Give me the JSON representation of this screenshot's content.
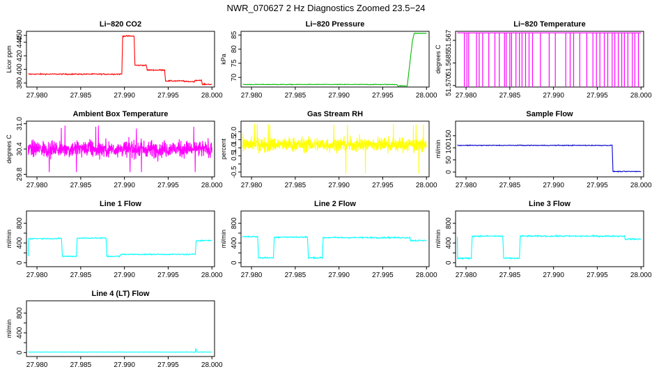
{
  "figure": {
    "title": "NWR_070627  2 Hz Diagnostics Zoomed 23.5−24"
  },
  "chart_data": [
    {
      "type": "line",
      "title": "Li−820 CO2",
      "ylabel": "Licor ppm",
      "xlim": [
        27.9788,
        28.0003
      ],
      "xticks": [
        27.98,
        27.985,
        27.99,
        27.995,
        28.0
      ],
      "xtick_labels": [
        "27.980",
        "27.985",
        "27.990",
        "27.995",
        "28.000"
      ],
      "ylim": [
        374,
        456
      ],
      "yticks": [
        380,
        400,
        420,
        440,
        450
      ],
      "ytick_labels": [
        "380",
        "400",
        "420",
        "440",
        "450"
      ],
      "color": "#ff0000",
      "noise": 0.6,
      "x": [
        27.979,
        27.9897,
        27.9898,
        27.9911,
        27.9912,
        27.9925,
        27.9926,
        27.9946,
        27.9947,
        27.9968,
        27.9969,
        27.998,
        27.9981,
        27.9988,
        27.9989,
        28.0
      ],
      "y": [
        393,
        393,
        449,
        449,
        406,
        406,
        399,
        399,
        383,
        383,
        382,
        382,
        384,
        384,
        378,
        378
      ]
    },
    {
      "type": "line",
      "title": "Li−820 Pressure",
      "ylabel": "kPa",
      "xlim": [
        27.9788,
        28.0003
      ],
      "xticks": [
        27.98,
        27.985,
        27.99,
        27.995,
        28.0
      ],
      "xtick_labels": [
        "27.980",
        "27.985",
        "27.990",
        "27.995",
        "28.000"
      ],
      "ylim": [
        66.6,
        86.3
      ],
      "yticks": [
        70,
        75,
        80,
        85
      ],
      "ytick_labels": [
        "70",
        "75",
        "80",
        "85"
      ],
      "color": "#00bb00",
      "noise": 0.08,
      "x": [
        27.979,
        27.9966,
        27.9967,
        27.9978,
        27.9981,
        27.9984,
        27.9986,
        28.0
      ],
      "y": [
        67.5,
        67.5,
        67.0,
        67.0,
        75,
        83,
        85.6,
        85.6
      ]
    },
    {
      "type": "line",
      "title": "Li−820 Temperature",
      "ylabel": "degrees C",
      "xlim": [
        27.9788,
        28.0003
      ],
      "xticks": [
        27.98,
        27.985,
        27.99,
        27.995,
        28.0
      ],
      "xtick_labels": [
        "27.980",
        "27.985",
        "27.990",
        "27.995",
        "28.000"
      ],
      "ylim": [
        51.5701,
        51.5664
      ],
      "yticks": [
        51.57,
        51.5685,
        51.567
      ],
      "ytick_labels": [
        "51.570",
        "51.5685",
        "51.567"
      ],
      "color": "#ff00ff",
      "base": 51.5665,
      "drop": 51.5701,
      "drop_x": [
        27.9798,
        27.9801,
        27.9803,
        27.9812,
        27.9815,
        27.9819,
        27.9826,
        27.9833,
        27.9838,
        27.9844,
        27.9846,
        27.985,
        27.9852,
        27.9857,
        27.9861,
        27.9864,
        27.9868,
        27.9872,
        27.9876,
        27.9885,
        27.9895,
        27.9902,
        27.9914,
        27.9919,
        27.9923,
        27.993,
        27.9938,
        27.9945,
        27.9949,
        27.9953,
        27.9958,
        27.9962,
        27.9967,
        27.997,
        27.9974,
        27.9978,
        27.9981,
        27.9985,
        27.999,
        27.9993,
        27.9997
      ]
    },
    {
      "type": "line",
      "title": "Ambient Box Temperature",
      "ylabel": "degrees C",
      "xlim": [
        27.9788,
        28.0003
      ],
      "xticks": [
        27.98,
        27.985,
        27.99,
        27.995,
        28.0
      ],
      "xtick_labels": [
        "27.980",
        "27.985",
        "27.990",
        "27.995",
        "28.000"
      ],
      "ylim": [
        29.74,
        31.06
      ],
      "yticks": [
        29.8,
        30.4,
        31.0
      ],
      "ytick_labels": [
        "29.8",
        "30.4",
        "31.0"
      ],
      "color": "#ff00ff",
      "mean": 30.4,
      "spread": 0.14,
      "range": [
        29.85,
        30.98
      ],
      "x_start": 27.979,
      "x_end": 28.0
    },
    {
      "type": "line",
      "title": "Gas Stream RH",
      "ylabel": "percent",
      "xlim": [
        27.9788,
        28.0003
      ],
      "xticks": [
        27.98,
        27.985,
        27.99,
        27.995,
        28.0
      ],
      "xtick_labels": [
        "27.980",
        "27.985",
        "27.990",
        "27.995",
        "28.000"
      ],
      "ylim": [
        -0.8,
        2.65
      ],
      "yticks": [
        -0.5,
        0.0,
        0.5,
        1.0,
        1.5,
        2.0
      ],
      "ytick_labels": [
        "-0.5",
        "0.5",
        "1.0",
        "1.5",
        "2.0"
      ],
      "ytick_label_values": [
        -0.5,
        0.5,
        1.0,
        1.5,
        2.0
      ],
      "color": "#ffff00",
      "mean": 1.2,
      "spread": 0.32,
      "range": [
        -0.6,
        2.5
      ],
      "x_start": 27.979,
      "x_end": 28.0
    },
    {
      "type": "line",
      "title": "Sample Flow",
      "ylabel": "ml/min",
      "xlim": [
        27.9788,
        28.0003
      ],
      "xticks": [
        27.98,
        27.985,
        27.99,
        27.995,
        28.0
      ],
      "xtick_labels": [
        "27.980",
        "27.985",
        "27.990",
        "27.995",
        "28.000"
      ],
      "ylim": [
        -20,
        210
      ],
      "yticks": [
        0,
        50,
        100,
        150
      ],
      "ytick_labels": [
        "0",
        "50",
        "100",
        "150"
      ],
      "color": "#0000cc",
      "noise": 1.2,
      "x": [
        27.979,
        27.9967,
        27.9968,
        28.0
      ],
      "y": [
        110,
        110,
        2,
        2
      ]
    },
    {
      "type": "line",
      "title": "Line 1 Flow",
      "ylabel": "ml/min",
      "xlim": [
        27.9788,
        28.0003
      ],
      "xticks": [
        27.98,
        27.985,
        27.99,
        27.995,
        28.0
      ],
      "xtick_labels": [
        "27.980",
        "27.985",
        "27.990",
        "27.995",
        "28.000"
      ],
      "ylim": [
        -80,
        1050
      ],
      "yticks": [
        0,
        200,
        400,
        600,
        800
      ],
      "ytick_labels": [
        "0",
        "400",
        "800"
      ],
      "ytick_label_values": [
        0,
        400,
        800
      ],
      "color": "#00ffff",
      "noise": 8,
      "x": [
        27.979,
        27.97905,
        27.9828,
        27.9829,
        27.9845,
        27.9846,
        27.9879,
        27.988,
        27.9895,
        27.9896,
        27.9981,
        27.9982,
        28.0
      ],
      "y": [
        130,
        490,
        490,
        130,
        130,
        500,
        500,
        130,
        130,
        170,
        170,
        450,
        450
      ]
    },
    {
      "type": "line",
      "title": "Line 2 Flow",
      "ylabel": "ml/min",
      "xlim": [
        27.9788,
        28.0003
      ],
      "xticks": [
        27.98,
        27.985,
        27.99,
        27.995,
        28.0
      ],
      "xtick_labels": [
        "27.980",
        "27.985",
        "27.990",
        "27.995",
        "28.000"
      ],
      "ylim": [
        -80,
        1050
      ],
      "yticks": [
        0,
        200,
        400,
        600,
        800
      ],
      "ytick_labels": [
        "0",
        "400",
        "800"
      ],
      "ytick_label_values": [
        0,
        400,
        800
      ],
      "color": "#00ffff",
      "noise": 10,
      "x": [
        27.979,
        27.9807,
        27.9808,
        27.9825,
        27.9826,
        27.9864,
        27.9865,
        27.9881,
        27.9882,
        27.9981,
        27.9982,
        28.0
      ],
      "y": [
        530,
        530,
        100,
        100,
        520,
        520,
        100,
        100,
        510,
        510,
        450,
        450
      ]
    },
    {
      "type": "line",
      "title": "Line 3 Flow",
      "ylabel": "ml/min",
      "xlim": [
        27.9788,
        28.0003
      ],
      "xticks": [
        27.98,
        27.985,
        27.99,
        27.995,
        28.0
      ],
      "xtick_labels": [
        "27.980",
        "27.985",
        "27.990",
        "27.995",
        "28.000"
      ],
      "ylim": [
        -80,
        1050
      ],
      "yticks": [
        0,
        200,
        400,
        600,
        800
      ],
      "ytick_labels": [
        "0",
        "400",
        "800"
      ],
      "ytick_label_values": [
        0,
        400,
        800
      ],
      "color": "#00ffff",
      "noise": 10,
      "x": [
        27.979,
        27.97905,
        27.9806,
        27.9807,
        27.9842,
        27.9843,
        27.9861,
        27.9862,
        27.9981,
        27.9982,
        28.0
      ],
      "y": [
        530,
        90,
        90,
        540,
        540,
        90,
        90,
        540,
        540,
        480,
        480
      ]
    },
    {
      "type": "line",
      "title": "Line 4 (LT) Flow",
      "ylabel": "ml/min",
      "xlim": [
        27.9788,
        28.0003
      ],
      "xticks": [
        27.98,
        27.985,
        27.99,
        27.995,
        28.0
      ],
      "xtick_labels": [
        "27.980",
        "27.985",
        "27.990",
        "27.995",
        "28.000"
      ],
      "ylim": [
        -80,
        1050
      ],
      "yticks": [
        0,
        200,
        400,
        600,
        800
      ],
      "ytick_labels": [
        "0",
        "400",
        "800"
      ],
      "ytick_label_values": [
        0,
        400,
        800
      ],
      "color": "#00ffff",
      "noise": 3,
      "x": [
        27.979,
        27.9981,
        27.99815,
        27.9983,
        28.0
      ],
      "y": [
        10,
        10,
        80,
        10,
        10
      ]
    }
  ]
}
